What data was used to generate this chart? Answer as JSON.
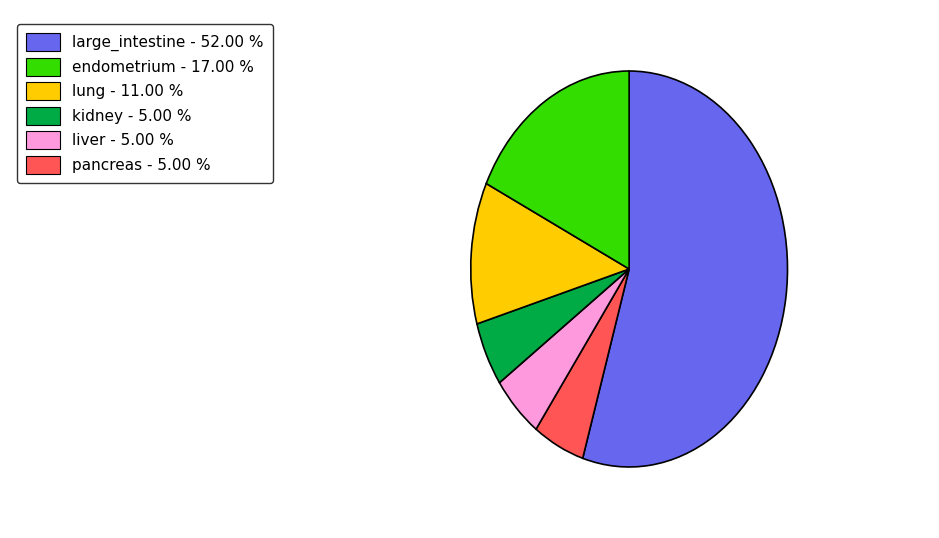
{
  "labels": [
    "large_intestine",
    "pancreas",
    "liver",
    "kidney",
    "lung",
    "endometrium"
  ],
  "values": [
    52,
    5,
    5,
    5,
    11,
    17
  ],
  "colors": [
    "#6666ee",
    "#ff5555",
    "#ff99dd",
    "#00aa44",
    "#ffcc00",
    "#33dd00"
  ],
  "legend_labels": [
    "large_intestine - 52.00 %",
    "endometrium - 17.00 %",
    "lung - 11.00 %",
    "kidney - 5.00 %",
    "liver - 5.00 %",
    "pancreas - 5.00 %"
  ],
  "legend_colors": [
    "#6666ee",
    "#33dd00",
    "#ffcc00",
    "#00aa44",
    "#ff99dd",
    "#ff5555"
  ],
  "startangle": 90,
  "figsize": [
    9.39,
    5.38
  ],
  "dpi": 100
}
